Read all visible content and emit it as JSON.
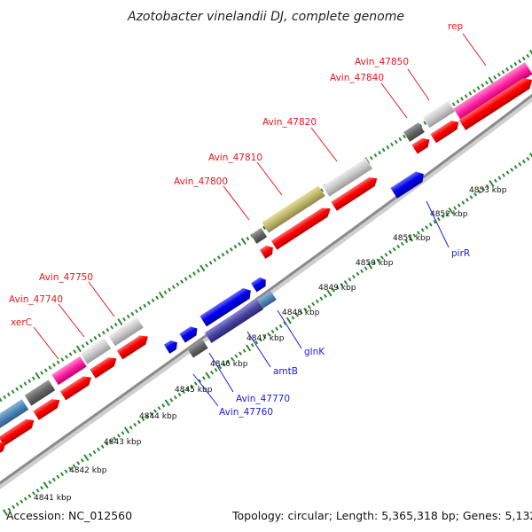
{
  "title": "Azotobacter vinelandii DJ, complete genome",
  "footer": {
    "accession": "Accession: NC_012560",
    "topology": "Topology: circular; Length: 5,365,318 bp; Genes: 5,132"
  },
  "colors": {
    "forward_label": "#e8141a",
    "reverse_label": "#1a1ae6",
    "cds_forward": "#ff0000",
    "cds_reverse": "#0000ee",
    "tick": "#2a8a2a",
    "backbone": "#888888"
  },
  "tick_labels": [
    "4841 kbp",
    "4842 kbp",
    "4843 kbp",
    "4844 kbp",
    "4845 kbp",
    "4846 kbp",
    "4847 kbp",
    "4848 kbp",
    "4849 kbp",
    "4850 kbp",
    "4851 kbp",
    "4852 kbp",
    "4853 kbp"
  ],
  "forward_labels": [
    "rep",
    "Avin_47850",
    "Avin_47840",
    "Avin_47820",
    "Avin_47810",
    "Avin_47800",
    "Avin_47750",
    "Avin_47740",
    "xerC"
  ],
  "reverse_labels": [
    "pirR",
    "glnK",
    "amtB",
    "Avin_47770",
    "Avin_47760"
  ]
}
